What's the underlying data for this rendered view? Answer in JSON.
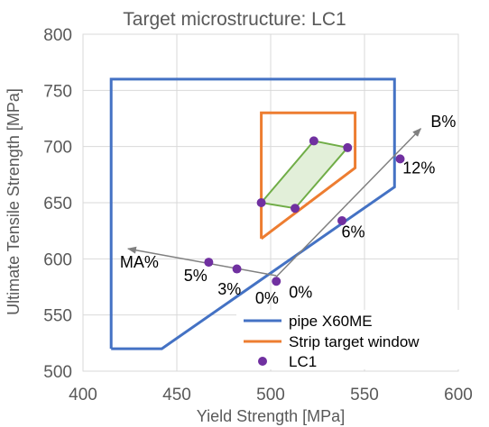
{
  "chart_data": {
    "type": "scatter",
    "title": "Target microstructure: LC1",
    "xlabel": "Yield Strength [MPa]",
    "ylabel": "Ultimate Tensile Strength [MPa]",
    "xlim": [
      400,
      600
    ],
    "ylim": [
      500,
      800
    ],
    "x_ticks": [
      "400",
      "450",
      "500",
      "550",
      "600"
    ],
    "y_ticks": [
      "500",
      "550",
      "600",
      "650",
      "700",
      "750",
      "800"
    ],
    "grid": true,
    "legend_position": "bottom-right",
    "series": [
      {
        "name": "pipe X60ME",
        "kind": "line",
        "color": "#4472c4",
        "points": [
          [
            415,
            520
          ],
          [
            442,
            520
          ],
          [
            566,
            664
          ],
          [
            566,
            760
          ],
          [
            415,
            760
          ],
          [
            415,
            520
          ]
        ]
      },
      {
        "name": "Strip target window",
        "kind": "line",
        "color": "#ed7d31",
        "points": [
          [
            495,
            618
          ],
          [
            495,
            730
          ],
          [
            545,
            730
          ],
          [
            545,
            681
          ],
          [
            495,
            618
          ]
        ]
      },
      {
        "name": "",
        "kind": "line",
        "color": "#70ad47",
        "points": [
          [
            495,
            650
          ],
          [
            513,
            645
          ],
          [
            541,
            699
          ],
          [
            523,
            705
          ],
          [
            495,
            650
          ]
        ]
      },
      {
        "name": "LC1",
        "kind": "scatter",
        "color": "#7030a0",
        "points": [
          [
            503,
            580
          ],
          [
            482,
            591
          ],
          [
            467,
            597
          ],
          [
            538,
            634
          ],
          [
            569,
            689
          ],
          [
            495,
            650
          ],
          [
            513,
            645
          ],
          [
            523,
            705
          ],
          [
            541,
            699
          ]
        ]
      }
    ],
    "arrows": [
      {
        "from": [
          503,
          585
        ],
        "to": [
          424,
          609
        ],
        "label": "MA%"
      },
      {
        "from": [
          503,
          584
        ],
        "to": [
          580,
          716
        ],
        "label": "B%"
      }
    ],
    "annotations": [
      {
        "text": "0%",
        "x": 498,
        "y": 565
      },
      {
        "text": "0%",
        "x": 516,
        "y": 570
      },
      {
        "text": "3%",
        "x": 478,
        "y": 573
      },
      {
        "text": "5%",
        "x": 460,
        "y": 585
      },
      {
        "text": "6%",
        "x": 544,
        "y": 624
      },
      {
        "text": "12%",
        "x": 579,
        "y": 681
      },
      {
        "text": "MA%",
        "x": 430,
        "y": 597
      },
      {
        "text": "B%",
        "x": 592,
        "y": 722
      }
    ]
  }
}
